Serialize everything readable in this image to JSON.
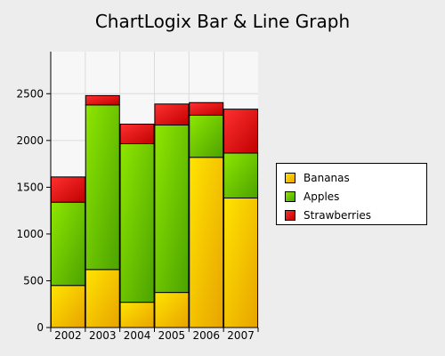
{
  "chart_data": {
    "type": "bar",
    "stacked": true,
    "title": "ChartLogix Bar & Line Graph",
    "xlabel": "",
    "ylabel": "",
    "categories": [
      "2002",
      "2003",
      "2004",
      "2005",
      "2006",
      "2007"
    ],
    "series": [
      {
        "name": "Bananas",
        "values": [
          450,
          620,
          270,
          375,
          1820,
          1385
        ],
        "color": "#ffe400",
        "color_dark": "#e8a300"
      },
      {
        "name": "Apples",
        "values": [
          890,
          1760,
          1695,
          1790,
          450,
          480
        ],
        "color": "#8ee600",
        "color_dark": "#4ca300"
      },
      {
        "name": "Strawberries",
        "values": [
          270,
          100,
          210,
          225,
          135,
          470
        ],
        "color": "#ff3030",
        "color_dark": "#c00000"
      }
    ],
    "ylim": [
      0,
      2950
    ],
    "yticks": [
      0,
      500,
      1000,
      1500,
      2000,
      2500
    ],
    "grid": true,
    "legend": "right"
  }
}
